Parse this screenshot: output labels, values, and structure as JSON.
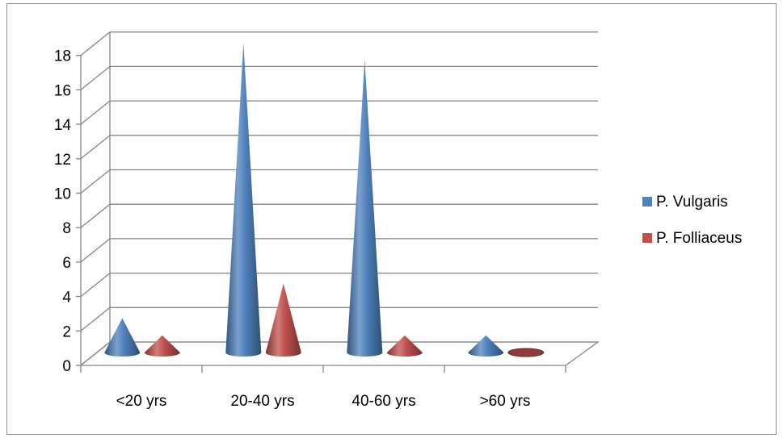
{
  "chart_data": {
    "type": "bar",
    "style": "3d-cone",
    "categories": [
      "<20 yrs",
      "20-40 yrs",
      "40-60 yrs",
      ">60 yrs"
    ],
    "series": [
      {
        "name": "P. Vulgaris",
        "values": [
          2,
          18,
          17,
          1
        ],
        "color": "#4f81bd"
      },
      {
        "name": "P. Folliaceus",
        "values": [
          1,
          4,
          1,
          0
        ],
        "color": "#c0504d"
      }
    ],
    "ylim": [
      0,
      18
    ],
    "yticks": [
      "0",
      "2",
      "4",
      "6",
      "8",
      "10",
      "12",
      "14",
      "16",
      "18"
    ],
    "grid": true,
    "legend_position": "right"
  }
}
